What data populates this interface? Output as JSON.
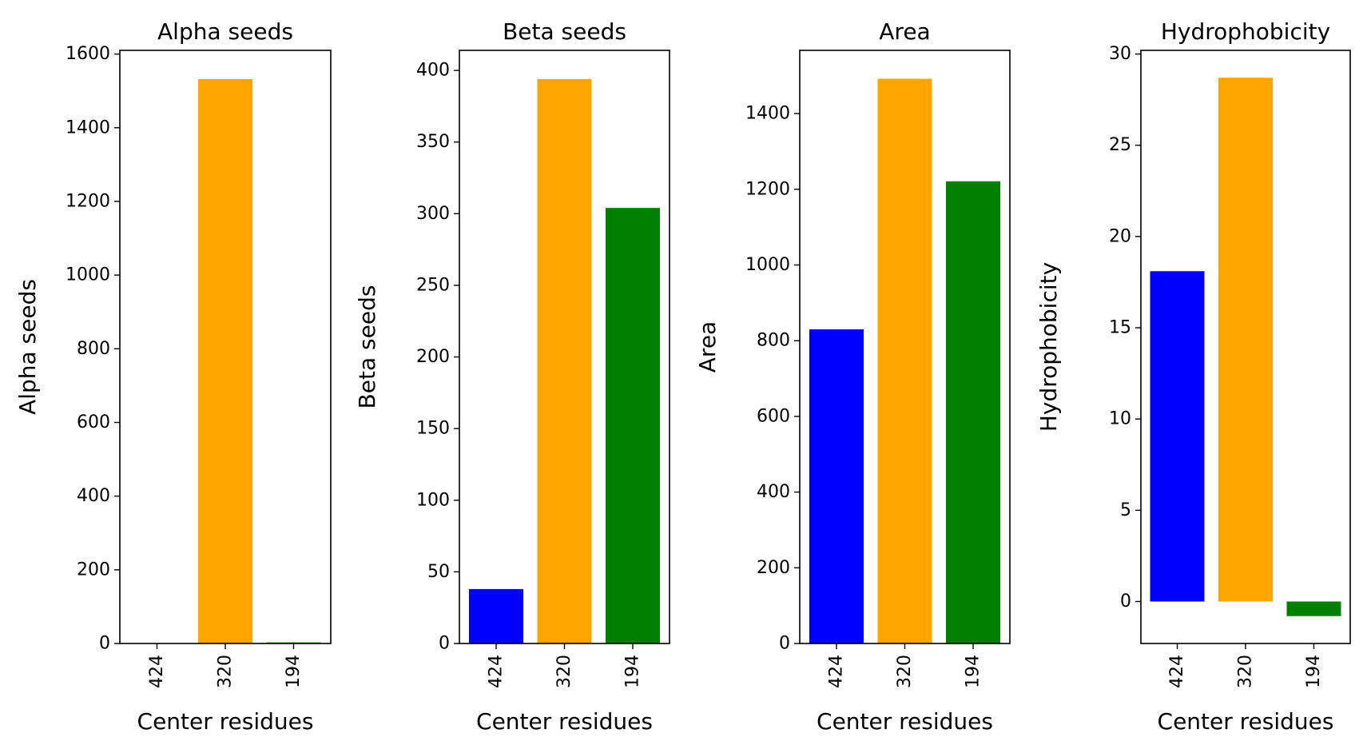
{
  "chart_data": [
    {
      "type": "bar",
      "title": "Alpha seeds",
      "xlabel": "Center residues",
      "ylabel": "Alpha seeds",
      "categories": [
        "424",
        "320",
        "194"
      ],
      "values": [
        0,
        1532,
        3
      ],
      "colors": [
        "#0000ff",
        "#ffa500",
        "#008000"
      ],
      "ylim": [
        0,
        1610
      ],
      "yticks": [
        0,
        200,
        400,
        600,
        800,
        1000,
        1200,
        1400,
        1600
      ],
      "x_tick_rotation": "vertical",
      "grid": false
    },
    {
      "type": "bar",
      "title": "Beta seeds",
      "xlabel": "Center residues",
      "ylabel": "Beta seeds",
      "categories": [
        "424",
        "320",
        "194"
      ],
      "values": [
        38,
        394,
        304
      ],
      "colors": [
        "#0000ff",
        "#ffa500",
        "#008000"
      ],
      "ylim": [
        0,
        414
      ],
      "yticks": [
        0,
        50,
        100,
        150,
        200,
        250,
        300,
        350,
        400
      ],
      "x_tick_rotation": "vertical",
      "grid": false
    },
    {
      "type": "bar",
      "title": "Area",
      "xlabel": "Center residues",
      "ylabel": "Area",
      "categories": [
        "424",
        "320",
        "194"
      ],
      "values": [
        830,
        1492,
        1221
      ],
      "colors": [
        "#0000ff",
        "#ffa500",
        "#008000"
      ],
      "ylim": [
        0,
        1567
      ],
      "yticks": [
        0,
        200,
        400,
        600,
        800,
        1000,
        1200,
        1400
      ],
      "x_tick_rotation": "vertical",
      "grid": false
    },
    {
      "type": "bar",
      "title": "Hydrophobicity",
      "xlabel": "Center residues",
      "ylabel": "Hydrophobicity",
      "categories": [
        "424",
        "320",
        "194"
      ],
      "values": [
        18.1,
        28.7,
        -0.8
      ],
      "colors": [
        "#0000ff",
        "#ffa500",
        "#008000"
      ],
      "ylim": [
        -2.3,
        30.2
      ],
      "yticks": [
        0,
        5,
        10,
        15,
        20,
        25,
        30
      ],
      "x_tick_rotation": "vertical",
      "grid": false
    }
  ]
}
